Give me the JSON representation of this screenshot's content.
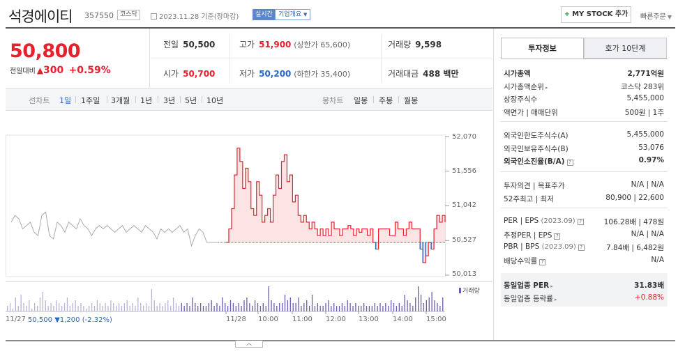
{
  "header": {
    "title": "석경에이티",
    "code": "357550",
    "market_tag": "코스닥",
    "date": "2023.11.28 기준(장마감)",
    "live_label": "실시간",
    "overview_label": "기업개요",
    "mystock_label": "MY STOCK 추가",
    "quick_order_label": "빠른주문"
  },
  "summary": {
    "price": "50,800",
    "change_label": "전일대비",
    "change_value": "300",
    "change_pct": "+0.59%",
    "prev_close_label": "전일",
    "prev_close": "50,500",
    "high_label": "고가",
    "high": "51,900",
    "upper_limit": "(상한가 65,600)",
    "volume_label": "거래량",
    "volume": "9,598",
    "open_label": "시가",
    "open": "50,700",
    "low_label": "저가",
    "low": "50,200",
    "lower_limit": "(하한가 35,400)",
    "amount_label": "거래대금",
    "amount": "488 백만"
  },
  "tabs": {
    "line_label": "선차트",
    "line_periods": [
      "1일",
      "1주일",
      "3개월",
      "1년",
      "3년",
      "5년",
      "10년"
    ],
    "active": "1일",
    "candle_label": "봉차트",
    "candle_periods": [
      "일봉",
      "주봉",
      "월봉"
    ]
  },
  "chart_data": {
    "type": "line",
    "y_ticks": [
      "52,070",
      "51,556",
      "51,042",
      "50,527",
      "50,013"
    ],
    "ylim": [
      50013,
      52070
    ],
    "baseline": 50500,
    "x_ticks": [
      "11/27",
      "11/28",
      "10:00",
      "11:00",
      "12:00",
      "13:00",
      "14:00",
      "15:00"
    ],
    "series": [
      {
        "name": "11/27",
        "color": "#aaaaaa",
        "values": [
          50800,
          50900,
          50850,
          50700,
          50750,
          50800,
          50650,
          50600,
          50900,
          50950,
          50600,
          50550,
          50800,
          50750,
          50650,
          50800,
          50750,
          50700,
          50850,
          50750,
          50700,
          50600,
          50700,
          50750,
          50700,
          50750,
          50700,
          50650,
          50700,
          50750,
          50650,
          50700,
          50750,
          50700,
          50650,
          50750,
          50700,
          50650,
          50550,
          50700,
          50650,
          50700,
          50650,
          50700,
          50750,
          50650,
          50700,
          50450,
          50600,
          50700,
          50650,
          50500,
          50500,
          50500,
          50500
        ]
      },
      {
        "name": "11/28",
        "color": "#e8202d",
        "values": [
          50500,
          50700,
          51000,
          51500,
          51900,
          51700,
          51300,
          51600,
          51400,
          51000,
          50900,
          51400,
          51200,
          50800,
          50900,
          51000,
          50800,
          51200,
          51500,
          51300,
          51700,
          51800,
          51400,
          51500,
          51100,
          51200,
          50900,
          50800,
          50900,
          50800,
          50700,
          50800,
          50700,
          50600,
          50700,
          50600,
          50700,
          50600,
          50800,
          50700,
          50700,
          50600,
          50700,
          50700,
          50750,
          50700,
          50600,
          50700,
          50650,
          50700,
          50700,
          50600,
          50700,
          50500,
          50400,
          50700,
          50700,
          50700,
          50700,
          50600,
          50600,
          50800,
          50700,
          50700,
          50600,
          50700,
          50800,
          50700,
          50700,
          50700,
          50400,
          50200,
          50300,
          50500,
          50400,
          50700,
          50900,
          50800,
          50900,
          50800
        ]
      }
    ],
    "volume_label": "거래량",
    "volume": [
      2,
      3,
      1,
      5,
      2,
      6,
      3,
      2,
      4,
      1,
      3,
      2,
      5,
      7,
      4,
      2,
      3,
      2,
      4,
      3,
      2,
      3,
      5,
      2,
      3,
      4,
      2,
      3,
      2,
      1,
      2,
      3,
      2,
      4,
      3,
      2,
      3,
      2,
      4,
      3,
      2,
      3,
      2,
      3,
      4,
      2,
      3,
      2,
      5,
      3,
      2,
      3,
      2,
      8,
      4,
      2,
      3,
      2,
      3,
      4,
      2,
      5,
      3,
      2,
      3,
      2,
      3,
      2,
      5,
      3,
      2,
      3,
      2,
      2,
      3,
      4,
      2,
      3,
      2,
      5,
      3,
      2,
      4,
      3,
      2,
      3,
      2,
      4,
      5,
      3,
      2,
      4,
      3,
      2,
      3,
      2,
      9,
      4,
      3,
      2,
      3,
      3,
      6,
      4,
      5,
      3,
      3,
      5,
      2,
      3,
      4,
      2,
      6,
      2,
      3,
      2,
      2,
      3,
      4,
      2,
      3,
      2,
      2,
      3,
      2,
      4,
      3,
      2,
      3,
      2,
      2,
      3,
      2,
      2,
      2,
      3,
      2,
      3,
      2,
      3,
      2,
      4,
      3,
      2,
      3,
      2,
      6,
      4,
      3,
      2,
      5,
      9,
      6,
      3,
      4,
      5,
      7,
      4,
      3,
      2,
      5
    ],
    "bottom_info": {
      "date": "11/27",
      "price": "50,500",
      "change": "▼1,200",
      "pct": "(-2.32%)"
    }
  },
  "invest": {
    "tab_on": "투자정보",
    "tab_off": "호가 10단계",
    "mcap_label": "시가총액",
    "mcap": "2,771억원",
    "mcap_rank_label": "시가총액순위",
    "mcap_rank": "코스닥 283위",
    "shares_label": "상장주식수",
    "shares": "5,455,000",
    "face_label": "액면가 | 매매단위",
    "face": "500원 | 1주",
    "foreign_limit_label": "외국인한도주식수(A)",
    "foreign_limit": "5,455,000",
    "foreign_hold_label": "외국인보유주식수(B)",
    "foreign_hold": "53,076",
    "foreign_ratio_label": "외국인소진율(B/A)",
    "foreign_ratio": "0.97%",
    "opinion_label": "투자의견 | 목표주가",
    "opinion": "N/A | N/A",
    "week52_label": "52주최고 | 최저",
    "week52": "80,900 | 22,600",
    "per_label": "PER | EPS",
    "per_year": "(2023.09)",
    "per": "106.28배 | 478원",
    "est_per_label": "추정PER | EPS",
    "est_per": "N/A | N/A",
    "pbr_label": "PBR | BPS",
    "pbr_year": "(2023.09)",
    "pbr": "7.84배 | 6,482원",
    "div_label": "배당수익률",
    "div": "N/A",
    "ind_per_label": "동일업종 PER",
    "ind_per": "31.83배",
    "ind_rate_label": "동일업종 등락률",
    "ind_rate": "+0.88%"
  }
}
